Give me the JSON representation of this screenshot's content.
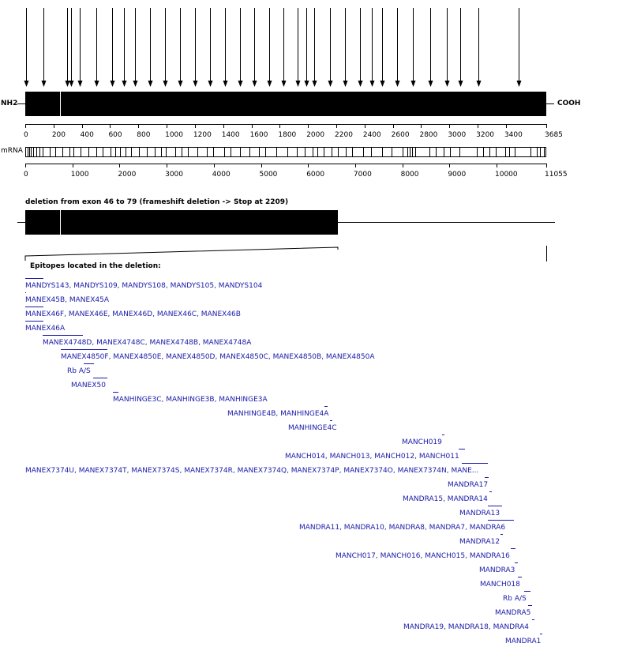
{
  "protein": {
    "n_label": "NH2",
    "c_label": "COOH",
    "length": 3685,
    "ticks": [
      "0",
      "200",
      "400",
      "600",
      "800",
      "1000",
      "1200",
      "1400",
      "1600",
      "1800",
      "2000",
      "2200",
      "2400",
      "2600",
      "2800",
      "3000",
      "3200",
      "3400",
      "3685"
    ]
  },
  "mrna": {
    "label": "mRNA",
    "length": 11055,
    "ticks": [
      "0",
      "1000",
      "2000",
      "3000",
      "4000",
      "5000",
      "6000",
      "7000",
      "8000",
      "9000",
      "10000",
      "11055"
    ]
  },
  "deletion": {
    "title": "deletion from exon 46 to 79 (frameshift deletion -> Stop at 2209)",
    "stop": 2209
  },
  "epitopes_heading": "Epitopes located in the deletion:",
  "epitopes": [
    "MANDYS143, MANDYS109, MANDYS108, MANDYS105, MANDYS104",
    "MANEX45B, MANEX45A",
    "MANEX46F, MANEX46E, MANEX46D, MANEX46C, MANEX46B",
    "MANEX46A",
    "MANEX4748D, MANEX4748C, MANEX4748B, MANEX4748A",
    "MANEX4850F, MANEX4850E, MANEX4850D, MANEX4850C, MANEX4850B, MANEX4850A",
    "Rb A/S",
    "MANEX50",
    "MANHINGE3C, MANHINGE3B, MANHINGE3A",
    "MANHINGE4B, MANHINGE4A",
    "MANHINGE4C",
    "MANCH019",
    "MANCH014, MANCH013, MANCH012, MANCH011",
    "MANEX7374U, MANEX7374T, MANEX7374S, MANEX7374R, MANEX7374Q, MANEX7374P, MANEX7374O, MANEX7374N, MANE...",
    "MANDRA17",
    "MANDRA15, MANDRA14",
    "MANDRA13",
    "MANDRA11, MANDRA10, MANDRA8, MANDRA7, MANDRA6",
    "MANDRA12",
    "MANCH017, MANCH016, MANCH015, MANDRA16",
    "MANDRA3",
    "MANCH018",
    "Rb A/S",
    "MANDRA5",
    "MANDRA19, MANDRA18, MANDRA4",
    "MANDRA1"
  ]
}
